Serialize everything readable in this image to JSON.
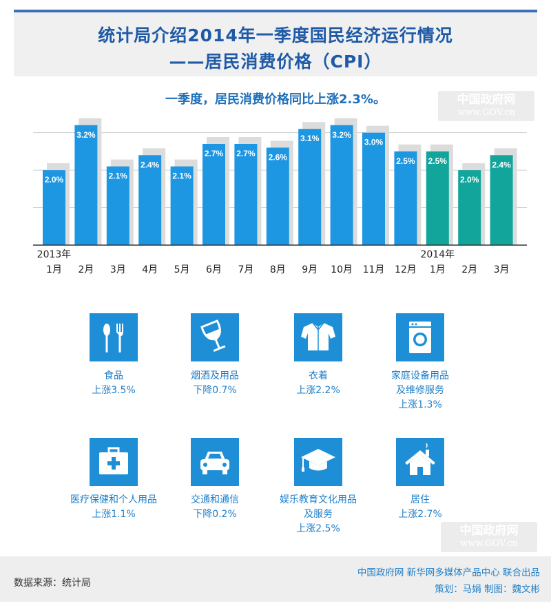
{
  "header": {
    "title_line1": "统计局介绍2014年一季度国民经济运行情况",
    "title_line2": "——居民消费价格（CPI）"
  },
  "watermark": {
    "cn": "中国政府网",
    "en": "www.GOV.cn"
  },
  "chart_data": {
    "type": "bar",
    "title": "一季度，居民消费价格同比上涨2.3%。",
    "categories": [
      "1月",
      "2月",
      "3月",
      "4月",
      "5月",
      "6月",
      "7月",
      "8月",
      "9月",
      "10月",
      "11月",
      "12月",
      "1月",
      "2月",
      "3月"
    ],
    "year_labels": [
      {
        "index": 0,
        "text": "2013年"
      },
      {
        "index": 12,
        "text": "2014年"
      }
    ],
    "series": [
      {
        "values": [
          2.0,
          3.2,
          2.1,
          2.4,
          2.1,
          2.7,
          2.7,
          2.6,
          3.1,
          3.2,
          3.0,
          2.5,
          2.5,
          2.0,
          2.4
        ],
        "labels": [
          "2.0%",
          "3.2%",
          "2.1%",
          "2.4%",
          "2.1%",
          "2.7%",
          "2.7%",
          "2.6%",
          "3.1%",
          "3.2%",
          "3.0%",
          "2.5%",
          "2.5%",
          "2.0%",
          "2.4%"
        ]
      }
    ],
    "ylim": [
      0,
      3.6
    ],
    "grid": true,
    "colors": {
      "bar_2013": "#1e97e3",
      "bar_2014": "#12a59b",
      "shadow": "#dcdcdc",
      "grid": "#cfcfcf",
      "axis": "#333333"
    }
  },
  "categories": [
    {
      "icon": "fork-spoon-icon",
      "name": "食品",
      "change": "上涨3.5%"
    },
    {
      "icon": "wine-glass-icon",
      "name": "烟酒及用品",
      "change": "下降0.7%"
    },
    {
      "icon": "shirt-icon",
      "name": "衣着",
      "change": "上涨2.2%"
    },
    {
      "icon": "washing-machine-icon",
      "name": "家庭设备用品",
      "name2": "及维修服务",
      "change": "上涨1.3%"
    },
    {
      "icon": "first-aid-kit-icon",
      "name": "医疗保健和个人用品",
      "change": "上涨1.1%"
    },
    {
      "icon": "car-icon",
      "name": "交通和通信",
      "change": "下降0.2%"
    },
    {
      "icon": "graduation-cap-icon",
      "name": "娱乐教育文化用品",
      "name2": "及服务",
      "change": "上涨2.5%"
    },
    {
      "icon": "house-icon",
      "name": "居住",
      "change": "上涨2.7%"
    }
  ],
  "footer": {
    "source": "数据来源：统计局",
    "credit_line1": "中国政府网 新华网多媒体产品中心 联合出品",
    "credit_line2": "策划：马娟  制图：魏文彬"
  }
}
